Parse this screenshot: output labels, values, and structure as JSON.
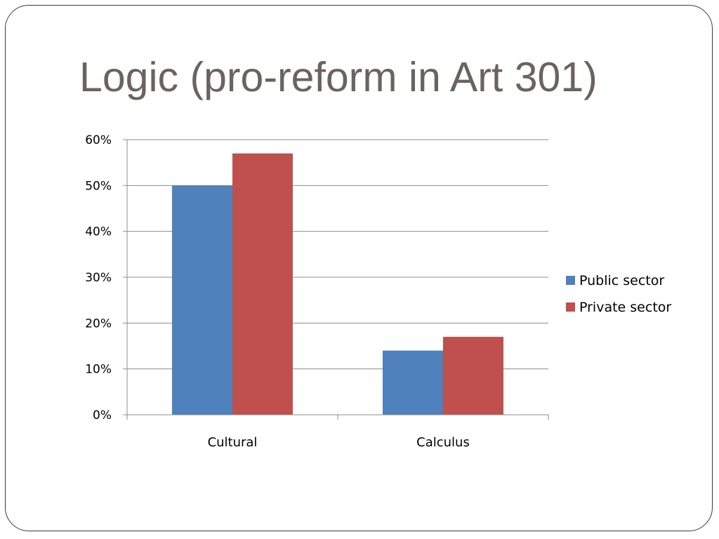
{
  "slide": {
    "title": "Logic (pro-reform in Art 301)"
  },
  "chart_data": {
    "type": "bar",
    "categories": [
      "Cultural",
      "Calculus"
    ],
    "series": [
      {
        "name": "Public sector",
        "values": [
          0.5,
          0.14
        ],
        "color": "#4F81BD"
      },
      {
        "name": "Private sector",
        "values": [
          0.57,
          0.17
        ],
        "color": "#C0504D"
      }
    ],
    "ylim": [
      0,
      0.6
    ],
    "yticks": [
      0,
      0.1,
      0.2,
      0.3,
      0.4,
      0.5,
      0.6
    ],
    "ytick_labels": [
      "0%",
      "10%",
      "20%",
      "30%",
      "40%",
      "50%",
      "60%"
    ],
    "grid": true,
    "legend": "right",
    "xlabel": "",
    "ylabel": ""
  }
}
